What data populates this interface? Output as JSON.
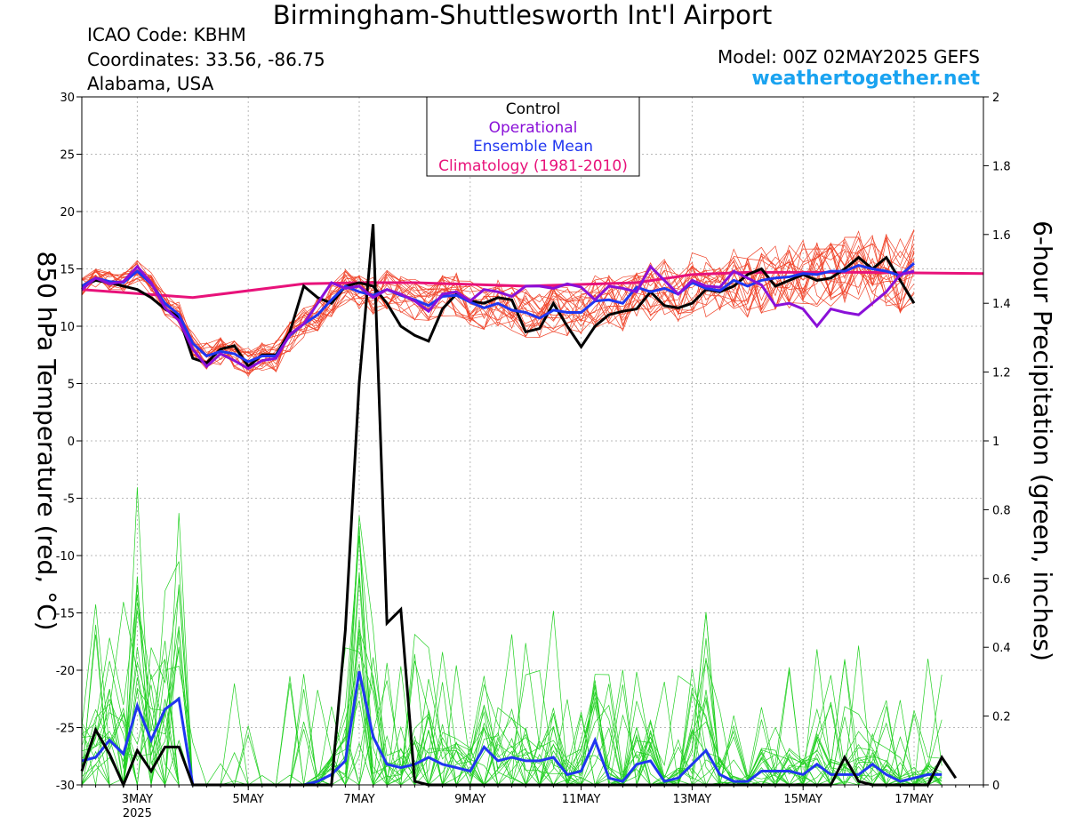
{
  "header": {
    "title": "Birmingham-Shuttlesworth Int'l Airport",
    "icao": "ICAO Code: KBHM",
    "coordinates": "Coordinates: 33.56, -86.75",
    "location": "Alabama, USA",
    "model": "Model: 00Z 02MAY2025 GEFS",
    "website": "weathertogether.net"
  },
  "chart_data": {
    "type": "line",
    "title": "Birmingham-Shuttlesworth Int'l Airport",
    "ylabel_left": "850 hPa Temperature (red, °C)",
    "ylabel_right": "6-hour Precipitation (green, inches)",
    "ylim_left": [
      -30,
      30
    ],
    "ylim_right": [
      0,
      2
    ],
    "yticks_left": [
      "30",
      "25",
      "20",
      "15",
      "10",
      "5",
      "0",
      "-5",
      "-10",
      "-15",
      "-20",
      "-25",
      "-30"
    ],
    "yticks_right": [
      "2",
      "1.8",
      "1.6",
      "1.4",
      "1.2",
      "1",
      "0.8",
      "0.6",
      "0.4",
      "0.2",
      "0"
    ],
    "x_unit": "days since 00Z 02MAY2025",
    "xlim": [
      0.0,
      16.25
    ],
    "xticks": [
      {
        "x": 1.0,
        "label": "3MAY",
        "sub": "2025"
      },
      {
        "x": 3.0,
        "label": "5MAY",
        "sub": ""
      },
      {
        "x": 5.0,
        "label": "7MAY",
        "sub": ""
      },
      {
        "x": 7.0,
        "label": "9MAY",
        "sub": ""
      },
      {
        "x": 9.0,
        "label": "11MAY",
        "sub": ""
      },
      {
        "x": 11.0,
        "label": "13MAY",
        "sub": ""
      },
      {
        "x": 13.0,
        "label": "15MAY",
        "sub": ""
      },
      {
        "x": 15.0,
        "label": "17MAY",
        "sub": ""
      }
    ],
    "grid": true,
    "legend_position": "top-center",
    "legend": [
      {
        "name": "Control",
        "color": "#000000"
      },
      {
        "name": "Operational",
        "color": "#8a10d8"
      },
      {
        "name": "Ensemble Mean",
        "color": "#2036f0"
      },
      {
        "name": "Climatology (1981-2010)",
        "color": "#e8127a"
      }
    ],
    "colors": {
      "ensemble_temp": "#f0442a",
      "ensemble_precip": "#22d022"
    },
    "temperature": {
      "step": 0.25,
      "control": [
        13.5,
        14.0,
        13.8,
        13.5,
        13.2,
        12.5,
        11.5,
        10.8,
        7.2,
        6.8,
        8.0,
        8.3,
        6.5,
        7.5,
        7.5,
        9.5,
        13.5,
        12.5,
        12.0,
        13.5,
        13.8,
        13.5,
        12.0,
        10.0,
        9.2,
        8.7,
        11.5,
        12.8,
        12.2,
        12.0,
        12.5,
        12.3,
        9.5,
        9.8,
        12.0,
        10.0,
        8.2,
        10.0,
        11.0,
        11.3,
        11.5,
        13.0,
        11.8,
        11.6,
        12.0,
        13.2,
        13.0,
        13.5,
        14.5,
        15.0,
        13.5,
        14.0,
        14.5,
        14.0,
        14.2,
        15.0,
        16.0,
        15.0,
        16.0,
        14.0,
        12.0
      ],
      "operational": [
        13.2,
        14.2,
        13.7,
        13.9,
        15.2,
        13.8,
        11.6,
        10.5,
        8.0,
        6.5,
        7.6,
        7.0,
        6.3,
        7.0,
        7.2,
        9.3,
        10.2,
        12.0,
        13.8,
        13.3,
        13.5,
        12.5,
        13.2,
        12.8,
        12.2,
        11.3,
        12.8,
        13.0,
        12.2,
        13.2,
        13.0,
        12.6,
        13.5,
        13.5,
        13.3,
        13.7,
        13.4,
        12.3,
        13.5,
        13.3,
        13.0,
        15.2,
        14.0,
        12.8,
        14.0,
        13.5,
        13.4,
        14.8,
        14.2,
        13.6,
        11.8,
        12.0,
        11.5,
        10.0,
        11.5,
        11.2,
        11.0,
        12.0,
        13.0,
        14.5,
        14.8
      ],
      "mean": [
        13.5,
        14.2,
        13.9,
        13.8,
        14.8,
        13.7,
        12.0,
        11.0,
        8.5,
        7.4,
        7.8,
        7.6,
        6.9,
        7.4,
        7.4,
        9.2,
        10.2,
        11.0,
        12.3,
        13.5,
        13.0,
        12.7,
        13.2,
        12.7,
        12.3,
        11.8,
        12.6,
        12.7,
        12.1,
        11.6,
        12.0,
        11.4,
        11.2,
        10.7,
        11.4,
        11.2,
        11.2,
        12.2,
        12.3,
        12.0,
        13.4,
        13.0,
        13.3,
        12.8,
        13.8,
        13.3,
        13.1,
        14.0,
        13.5,
        14.0,
        14.2,
        14.3,
        14.6,
        14.5,
        14.8,
        14.8,
        15.3,
        15.0,
        14.8,
        14.4,
        15.5
      ]
    },
    "climatology": {
      "x": [
        0,
        2,
        4,
        5,
        6,
        8,
        10,
        11,
        12,
        14,
        16.25
      ],
      "y": [
        13.2,
        12.5,
        13.7,
        13.8,
        13.8,
        13.5,
        13.8,
        14.5,
        14.7,
        14.7,
        14.6
      ]
    },
    "precip": {
      "step": 0.25,
      "control": [
        0.04,
        0.16,
        0.09,
        0.0,
        0.1,
        0.04,
        0.11,
        0.11,
        0.0,
        0.0,
        0.0,
        0.0,
        0.0,
        0.0,
        0.0,
        0.0,
        0.0,
        0.0,
        0.0,
        0.45,
        1.17,
        1.63,
        0.47,
        0.51,
        0.01,
        0.0,
        0.0,
        0.0,
        0.0,
        0.0,
        0.0,
        0.0,
        0.0,
        0.0,
        0.0,
        0.0,
        0.0,
        0.0,
        0.0,
        0.0,
        0.0,
        0.0,
        0.0,
        0.0,
        0.0,
        0.0,
        0.0,
        0.0,
        0.0,
        0.0,
        0.0,
        0.0,
        0.0,
        0.0,
        0.0,
        0.08,
        0.01,
        0.0,
        0.0,
        0.0,
        0.0,
        0.0,
        0.08,
        0.02
      ],
      "mean": [
        0.07,
        0.08,
        0.13,
        0.09,
        0.23,
        0.13,
        0.22,
        0.25,
        0.0,
        0.0,
        0.0,
        0.0,
        0.0,
        0.0,
        0.0,
        0.0,
        0.0,
        0.01,
        0.03,
        0.07,
        0.33,
        0.14,
        0.06,
        0.05,
        0.06,
        0.08,
        0.06,
        0.05,
        0.04,
        0.11,
        0.07,
        0.08,
        0.07,
        0.07,
        0.08,
        0.03,
        0.04,
        0.13,
        0.02,
        0.01,
        0.06,
        0.07,
        0.01,
        0.02,
        0.06,
        0.1,
        0.03,
        0.01,
        0.01,
        0.04,
        0.04,
        0.04,
        0.03,
        0.06,
        0.03,
        0.03,
        0.03,
        0.06,
        0.03,
        0.01,
        0.02,
        0.03,
        0.03
      ]
    }
  }
}
